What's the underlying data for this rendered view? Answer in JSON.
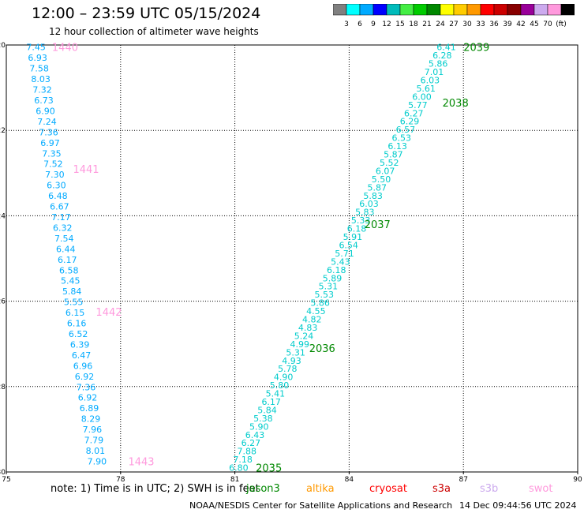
{
  "title": "12:00 – 23:59 UTC 05/15/2024",
  "subtitle": "12 hour collection of altimeter wave heights",
  "legend": {
    "colors": [
      "#808080",
      "#00ffff",
      "#00aaff",
      "#0000ff",
      "#00bbbb",
      "#44ee44",
      "#00cc00",
      "#008800",
      "#ffff00",
      "#ffcc00",
      "#ff9900",
      "#ff0000",
      "#cc0000",
      "#880000",
      "#990099",
      "#ccaaee",
      "#ff99dd",
      "#000000"
    ],
    "labels": [
      "3",
      "6",
      "9",
      "12",
      "15",
      "18",
      "21",
      "24",
      "27",
      "30",
      "33",
      "36",
      "39",
      "42",
      "45",
      "70",
      "(ft)"
    ]
  },
  "note": {
    "text": "note:  1) Time is in UTC;  2) SWH is in feet",
    "satellites": [
      {
        "name": "jason3",
        "color": "#008800"
      },
      {
        "name": "altika",
        "color": "#ff9900"
      },
      {
        "name": "cryosat",
        "color": "#ff0000"
      },
      {
        "name": "s3a",
        "color": "#cc0000"
      },
      {
        "name": "s3b",
        "color": "#ccaaee"
      },
      {
        "name": "swot",
        "color": "#ff99dd"
      }
    ]
  },
  "credit": "NOAA/NESDIS Center for Satellite Applications and Research",
  "timestamp": "14 Dec 09:44:56 UTC 2024",
  "chart_data": {
    "type": "scatter",
    "xlim": [
      75,
      90
    ],
    "ylim": [
      -30,
      -20
    ],
    "x_ticks": [
      "75",
      "78",
      "81",
      "84",
      "87",
      "90"
    ],
    "y_ticks": [
      "-20",
      "-22",
      "-24",
      "-26",
      "-28",
      "-30"
    ],
    "grid": true,
    "series": [
      {
        "color": "#ff99dd",
        "label_color": "#00aaff",
        "lon_start": 75.78,
        "lat_start": -20.05,
        "lon_end": 77.38,
        "lat_end": -29.75,
        "values": [
          7.45,
          6.93,
          7.58,
          8.03,
          7.32,
          6.73,
          6.9,
          7.24,
          7.36,
          6.97,
          7.35,
          7.52,
          7.3,
          6.3,
          6.48,
          6.67,
          7.17,
          6.32,
          7.54,
          6.44,
          6.17,
          6.58,
          5.45,
          5.84,
          5.55,
          6.15,
          6.16,
          6.52,
          6.39,
          6.47,
          6.96,
          6.92,
          7.36,
          6.92,
          6.89,
          8.29,
          7.96,
          7.79,
          8.01,
          7.9
        ],
        "time_marks": [
          {
            "label": "1440",
            "lon": 76.2,
            "lat": -20.05
          },
          {
            "label": "1441",
            "lon": 76.75,
            "lat": -22.9
          },
          {
            "label": "1442",
            "lon": 77.35,
            "lat": -26.25
          },
          {
            "label": "1443",
            "lon": 78.2,
            "lat": -29.75
          }
        ]
      },
      {
        "color": "#008800",
        "label_color": "#00cccc",
        "lon_start": 86.55,
        "lat_start": -20.05,
        "lon_end": 81.1,
        "lat_end": -29.9,
        "values": [
          6.41,
          6.28,
          5.86,
          7.01,
          6.03,
          5.61,
          6.0,
          5.77,
          6.27,
          6.29,
          6.57,
          6.53,
          6.13,
          5.87,
          5.52,
          6.07,
          5.5,
          5.87,
          5.83,
          6.03,
          5.83,
          5.33,
          6.18,
          5.91,
          6.54,
          5.71,
          5.43,
          6.18,
          5.89,
          5.31,
          5.53,
          5.86,
          4.55,
          4.82,
          4.83,
          5.24,
          4.99,
          5.31,
          4.93,
          5.78,
          4.9,
          5.8,
          5.41,
          6.17,
          5.84,
          5.38,
          5.9,
          6.43,
          6.27,
          7.88,
          7.18,
          6.8
        ],
        "time_marks": [
          {
            "label": "2039",
            "lon": 87.0,
            "lat": -20.05
          },
          {
            "label": "2038",
            "lon": 86.45,
            "lat": -21.35
          },
          {
            "label": "2037",
            "lon": 84.4,
            "lat": -24.2
          },
          {
            "label": "2036",
            "lon": 82.95,
            "lat": -27.1
          },
          {
            "label": "2035",
            "lon": 81.55,
            "lat": -29.9
          }
        ]
      }
    ]
  }
}
